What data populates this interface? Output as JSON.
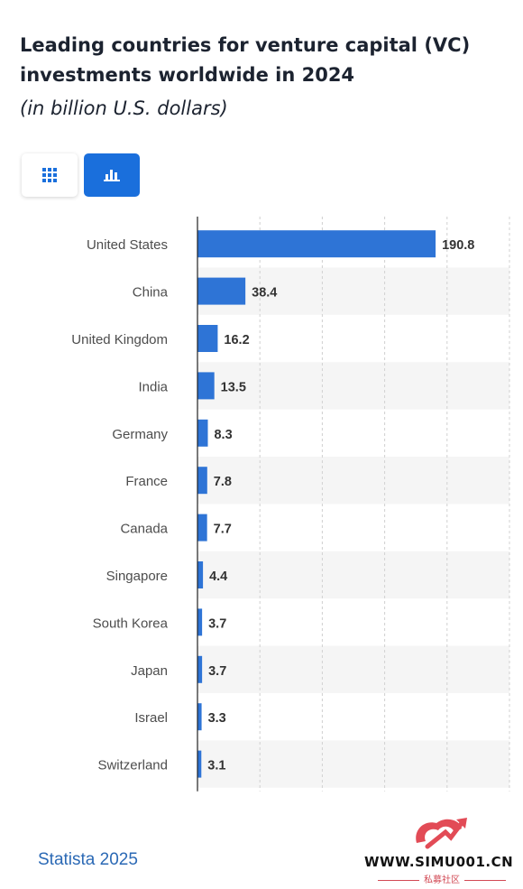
{
  "title": "Leading countries for venture capital (VC) investments worldwide in 2024",
  "subtitle": "(in billion U.S. dollars)",
  "toolbar": {
    "table_icon": "table-grid-icon",
    "chart_icon": "bar-chart-icon"
  },
  "colors": {
    "bar": "#2e74d6",
    "accent": "#1a6fdc",
    "alt_row": "#f5f5f5",
    "label": "#4d4d4d",
    "value": "#333333",
    "source": "#2b69b5"
  },
  "chart_data": {
    "type": "bar",
    "orientation": "horizontal",
    "categories": [
      "United States",
      "China",
      "United Kingdom",
      "India",
      "Germany",
      "France",
      "Canada",
      "Singapore",
      "South Korea",
      "Japan",
      "Israel",
      "Switzerland"
    ],
    "values": [
      190.8,
      38.4,
      16.2,
      13.5,
      8.3,
      7.8,
      7.7,
      4.4,
      3.7,
      3.7,
      3.3,
      3.1
    ],
    "value_labels": [
      "190.8",
      "38.4",
      "16.2",
      "13.5",
      "8.3",
      "7.8",
      "7.7",
      "4.4",
      "3.7",
      "3.7",
      "3.3",
      "3.1"
    ],
    "xlim": [
      0,
      250
    ],
    "grid": true,
    "data_labels": true
  },
  "source": "Statista 2025",
  "watermark": {
    "text": "WWW.SIMU001.CN",
    "subtext": "私募社区"
  }
}
